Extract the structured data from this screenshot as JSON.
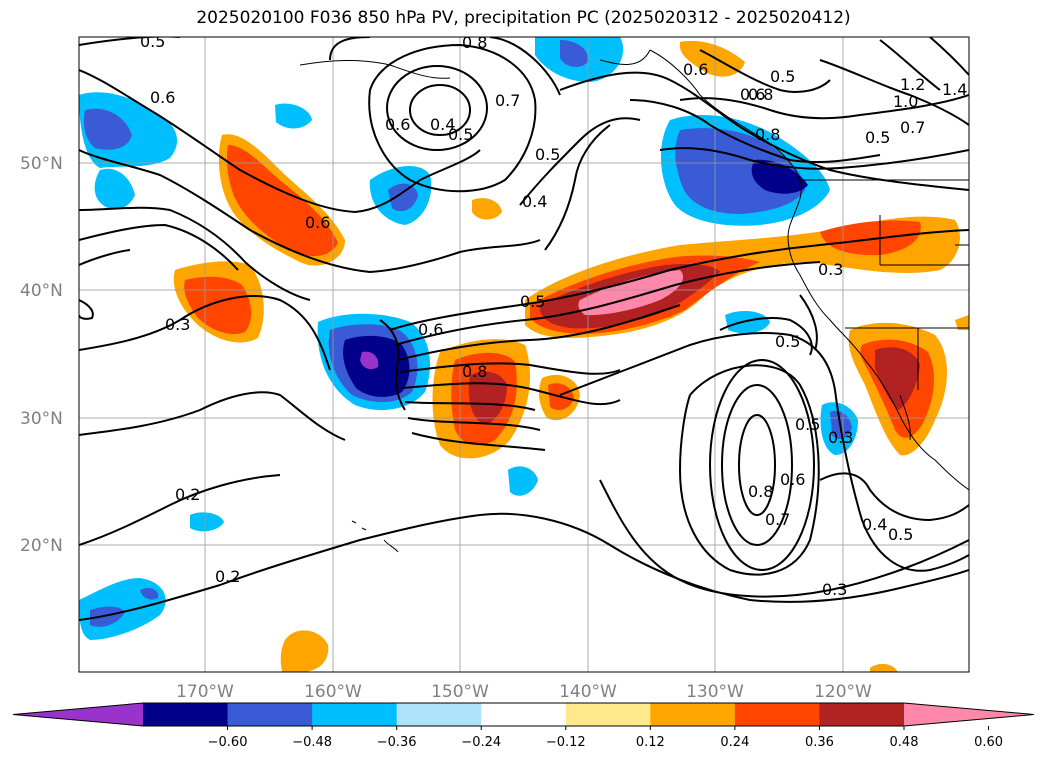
{
  "title": "2025020100 F036 850 hPa PV, precipitation PC (2025020312 - 2025020412)",
  "lat_ticks": [
    "50°N",
    "40°N",
    "30°N",
    "20°N"
  ],
  "lon_ticks": [
    "170°W",
    "160°W",
    "150°W",
    "140°W",
    "130°W",
    "120°W"
  ],
  "colorbar": {
    "ticks": [
      "−0.60",
      "−0.48",
      "−0.36",
      "−0.24",
      "−0.12",
      "0.12",
      "0.24",
      "0.36",
      "0.48",
      "0.60"
    ],
    "colors": [
      "#9933cc",
      "#00008b",
      "#3a5bd6",
      "#00bfff",
      "#aee1fa",
      "#ffffff",
      "#ffe98c",
      "#ffa500",
      "#ff4500",
      "#b22222",
      "#ff88aa"
    ]
  },
  "contour_labels": [
    "0.5",
    "0.8",
    "0.6",
    "0.6",
    "0.4",
    "0.5",
    "0.7",
    "0.5",
    "0.4",
    "0.6",
    "0.6",
    "0.5",
    "0.8",
    "0.8",
    "0.5",
    "1.2",
    "1.0",
    "1.4",
    "0.7",
    "0.6",
    "0.3",
    "0.5",
    "0.6",
    "0.8",
    "0.3",
    "0.5",
    "0.3",
    "0.5",
    "0.6",
    "0.8",
    "0.7",
    "0.3",
    "0.4",
    "0.5",
    "0.2",
    "0.2"
  ]
}
